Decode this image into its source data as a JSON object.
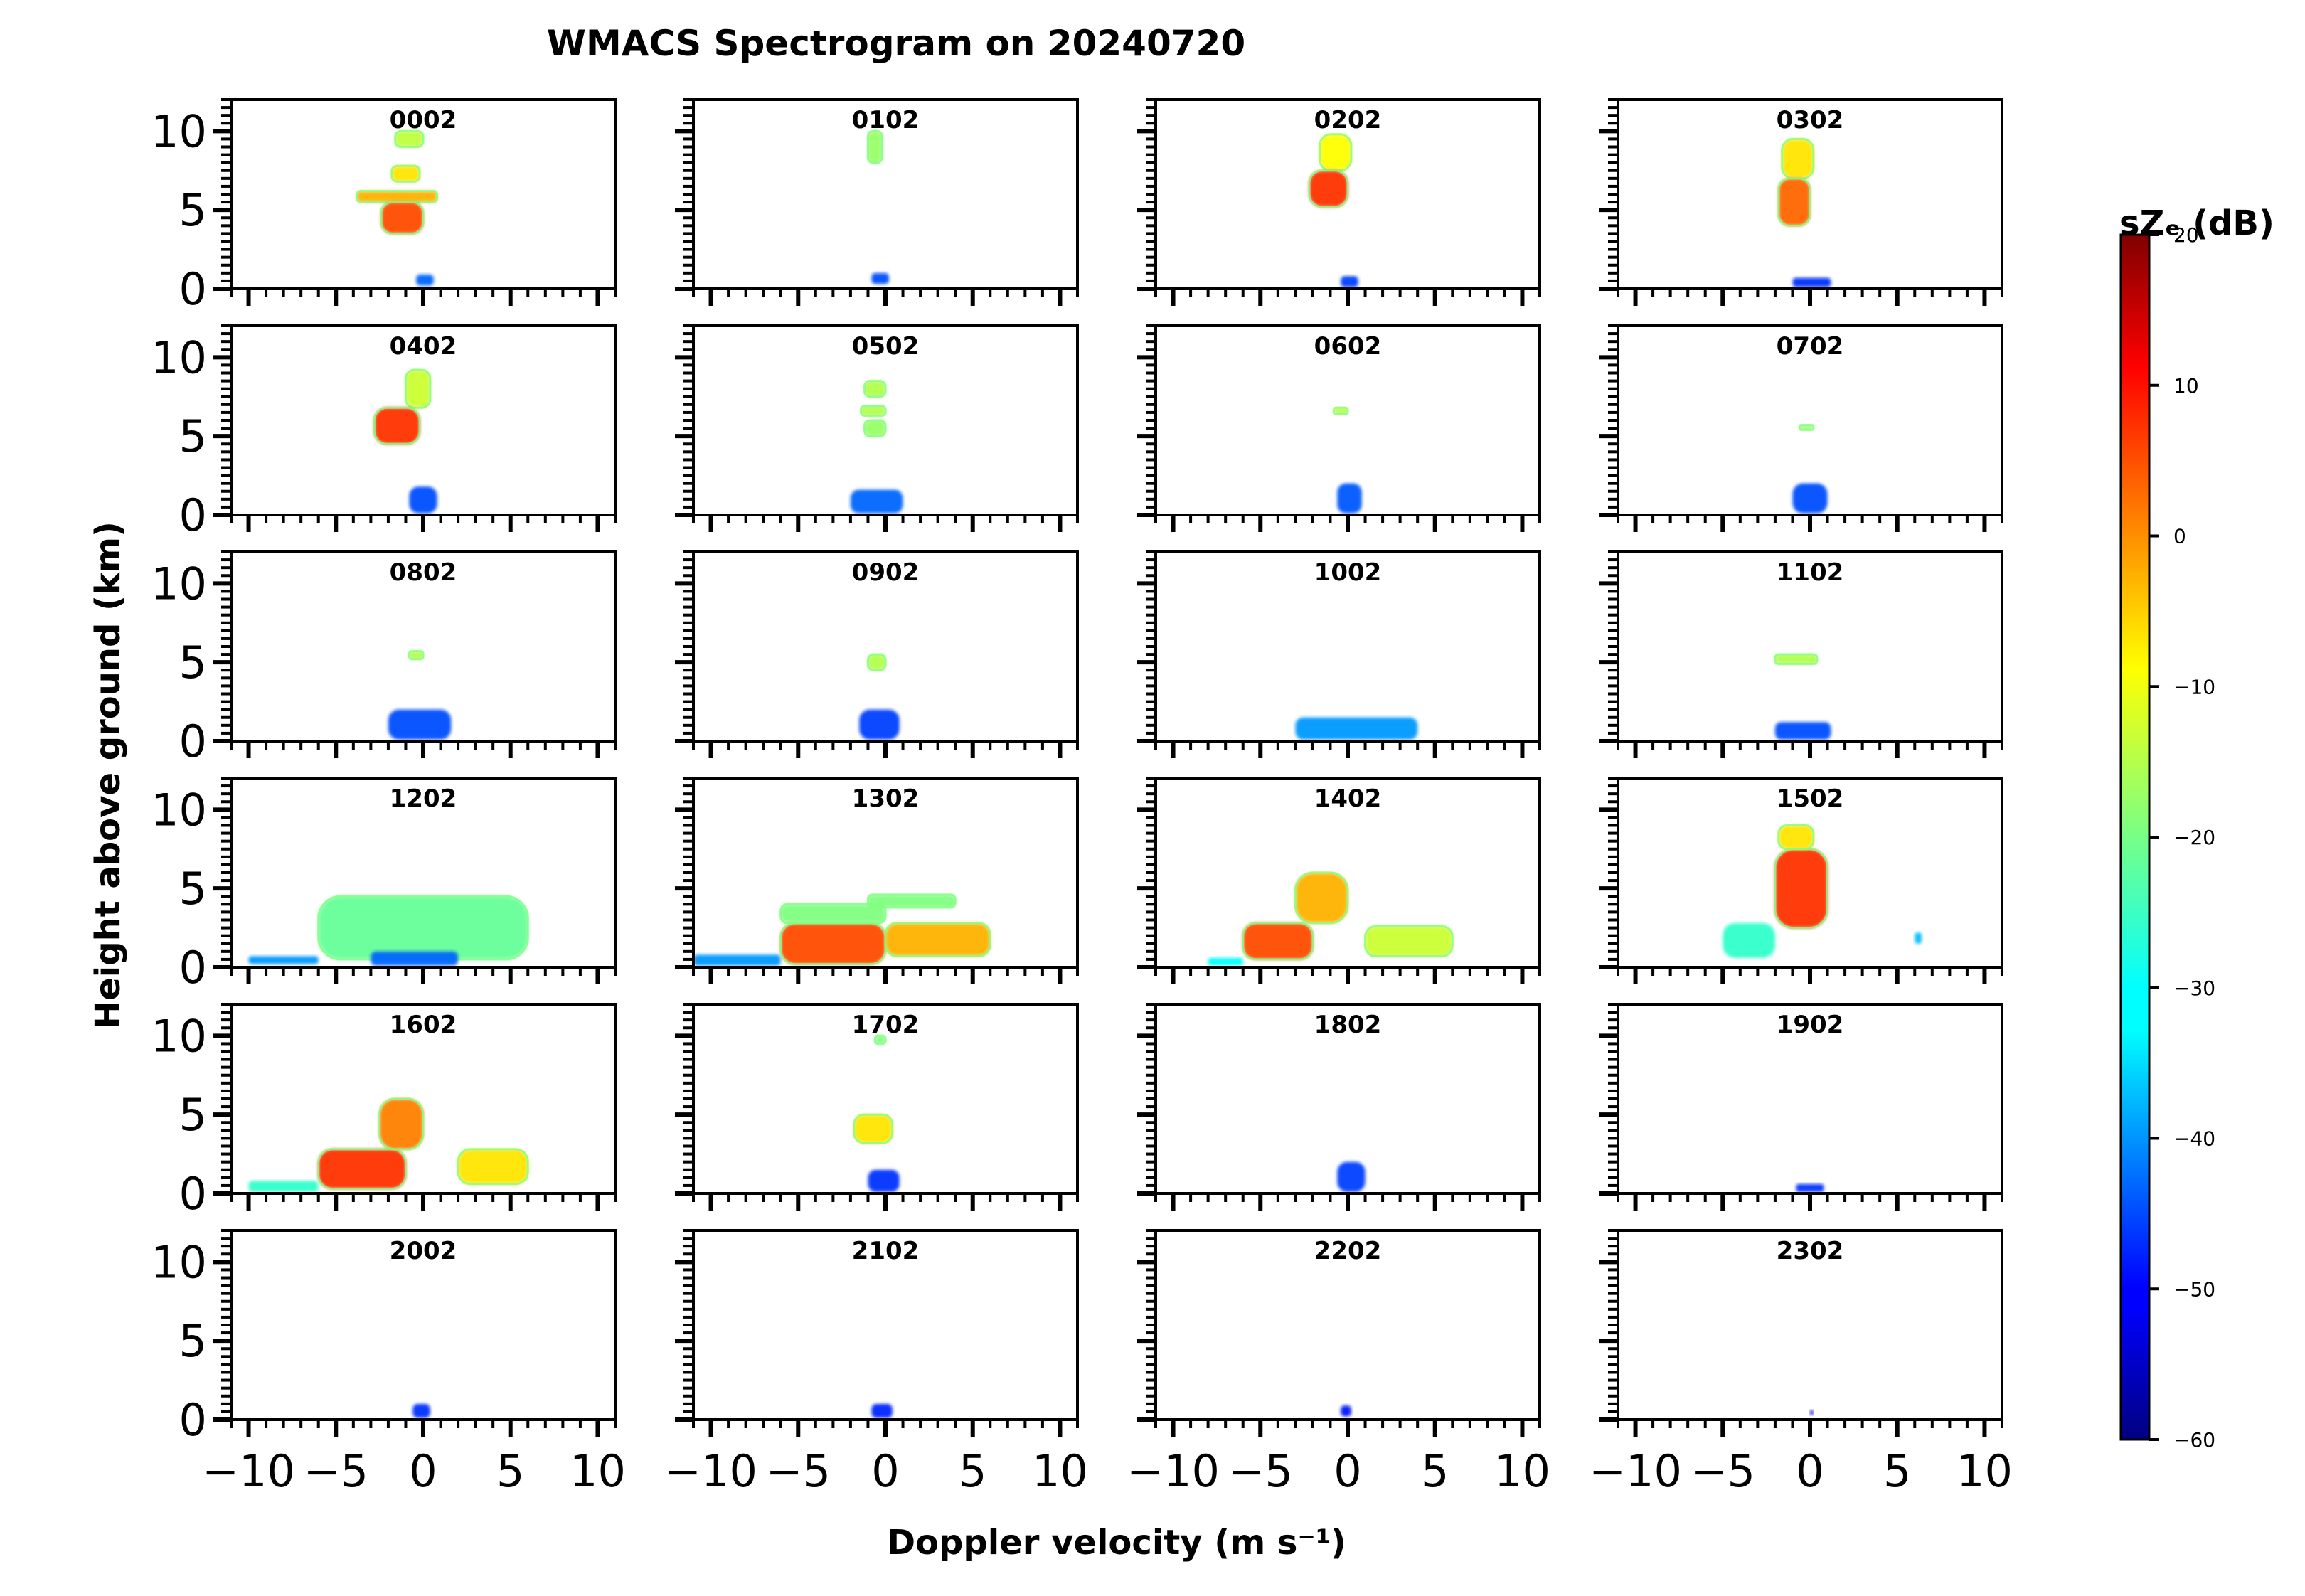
{
  "chart_data": {
    "type": "heatmap",
    "title": "WMACS Spectrogram on 20240720",
    "xlabel": "Doppler velocity (m s⁻¹)",
    "ylabel": "Height above ground (km)",
    "xlim": [
      -11,
      11
    ],
    "ylim": [
      0,
      12
    ],
    "x_ticks": [
      -10,
      -5,
      0,
      5,
      10
    ],
    "x_tick_labels": [
      "−10",
      "−5",
      "0",
      "5",
      "10"
    ],
    "y_ticks": [
      0,
      5,
      10
    ],
    "y_tick_labels": [
      "0",
      "5",
      "10"
    ],
    "colorbar": {
      "label": "sZₑ (dB)",
      "range": [
        -60,
        20
      ],
      "ticks": [
        -60,
        -50,
        -40,
        -30,
        -20,
        -10,
        0,
        10,
        20
      ],
      "tick_labels": [
        "−60",
        "−50",
        "−40",
        "−30",
        "−20",
        "−10",
        "0",
        "10",
        "20"
      ],
      "colormap": "jet"
    },
    "panels": [
      {
        "time": "0002",
        "features": [
          {
            "x": [
              -1.6,
              0.0
            ],
            "y": [
              9.0,
              10.0
            ],
            "dB": -15
          },
          {
            "x": [
              -1.8,
              -0.2
            ],
            "y": [
              6.8,
              7.8
            ],
            "dB": -8
          },
          {
            "x": [
              -3.8,
              0.8
            ],
            "y": [
              5.5,
              6.2
            ],
            "dB": -4
          },
          {
            "x": [
              -2.4,
              0.0
            ],
            "y": [
              3.5,
              5.5
            ],
            "dB": 4
          },
          {
            "x": [
              -0.4,
              0.6
            ],
            "y": [
              0.2,
              0.9
            ],
            "dB": -42
          }
        ]
      },
      {
        "time": "0102",
        "features": [
          {
            "x": [
              -1.0,
              -0.2
            ],
            "y": [
              8.0,
              10.0
            ],
            "dB": -18
          },
          {
            "x": [
              -0.8,
              0.2
            ],
            "y": [
              0.3,
              1.0
            ],
            "dB": -44
          }
        ]
      },
      {
        "time": "0202",
        "features": [
          {
            "x": [
              -1.6,
              0.2
            ],
            "y": [
              7.5,
              9.8
            ],
            "dB": -10
          },
          {
            "x": [
              -2.2,
              0.0
            ],
            "y": [
              5.2,
              7.5
            ],
            "dB": 6
          },
          {
            "x": [
              -0.4,
              0.6
            ],
            "y": [
              0.1,
              0.8
            ],
            "dB": -45
          }
        ]
      },
      {
        "time": "0302",
        "features": [
          {
            "x": [
              -1.6,
              0.2
            ],
            "y": [
              7.0,
              9.5
            ],
            "dB": -8
          },
          {
            "x": [
              -1.8,
              0.0
            ],
            "y": [
              4.0,
              7.0
            ],
            "dB": 2
          },
          {
            "x": [
              -1.0,
              1.2
            ],
            "y": [
              0.1,
              0.7
            ],
            "dB": -46
          }
        ]
      },
      {
        "time": "0402",
        "features": [
          {
            "x": [
              -1.0,
              0.4
            ],
            "y": [
              6.8,
              9.2
            ],
            "dB": -14
          },
          {
            "x": [
              -2.8,
              -0.2
            ],
            "y": [
              4.5,
              6.8
            ],
            "dB": 6
          },
          {
            "x": [
              -0.8,
              0.8
            ],
            "y": [
              0.1,
              1.8
            ],
            "dB": -44
          }
        ]
      },
      {
        "time": "0502",
        "features": [
          {
            "x": [
              -1.2,
              0.0
            ],
            "y": [
              7.5,
              8.5
            ],
            "dB": -16
          },
          {
            "x": [
              -1.4,
              0.0
            ],
            "y": [
              6.3,
              6.9
            ],
            "dB": -16
          },
          {
            "x": [
              -1.2,
              0.0
            ],
            "y": [
              5.0,
              6.0
            ],
            "dB": -18
          },
          {
            "x": [
              -2.0,
              1.0
            ],
            "y": [
              0.1,
              1.6
            ],
            "dB": -42
          }
        ]
      },
      {
        "time": "0602",
        "features": [
          {
            "x": [
              -0.8,
              0.0
            ],
            "y": [
              6.4,
              6.8
            ],
            "dB": -15
          },
          {
            "x": [
              -0.6,
              0.8
            ],
            "y": [
              0.1,
              2.0
            ],
            "dB": -43
          }
        ]
      },
      {
        "time": "0702",
        "features": [
          {
            "x": [
              -0.6,
              0.2
            ],
            "y": [
              5.4,
              5.7
            ],
            "dB": -18
          },
          {
            "x": [
              -1.0,
              1.0
            ],
            "y": [
              0.1,
              2.0
            ],
            "dB": -44
          }
        ]
      },
      {
        "time": "0802",
        "features": [
          {
            "x": [
              -0.8,
              0.0
            ],
            "y": [
              5.2,
              5.7
            ],
            "dB": -16
          },
          {
            "x": [
              -2.0,
              1.6
            ],
            "y": [
              0.1,
              2.0
            ],
            "dB": -44
          }
        ]
      },
      {
        "time": "0902",
        "features": [
          {
            "x": [
              -1.0,
              0.0
            ],
            "y": [
              4.5,
              5.5
            ],
            "dB": -16
          },
          {
            "x": [
              -1.5,
              0.8
            ],
            "y": [
              0.1,
              2.0
            ],
            "dB": -45
          }
        ]
      },
      {
        "time": "1002",
        "features": [
          {
            "x": [
              -3.0,
              4.0
            ],
            "y": [
              0.1,
              1.5
            ],
            "dB": -38
          }
        ]
      },
      {
        "time": "1102",
        "features": [
          {
            "x": [
              -2.0,
              0.4
            ],
            "y": [
              4.9,
              5.5
            ],
            "dB": -16
          },
          {
            "x": [
              -2.0,
              1.2
            ],
            "y": [
              0.1,
              1.2
            ],
            "dB": -44
          }
        ]
      },
      {
        "time": "1202",
        "features": [
          {
            "x": [
              -10.0,
              -6.0
            ],
            "y": [
              0.2,
              0.7
            ],
            "dB": -38
          },
          {
            "x": [
              -6.0,
              6.0
            ],
            "y": [
              0.5,
              4.5
            ],
            "dB": -22
          },
          {
            "x": [
              -3.0,
              2.0
            ],
            "y": [
              0.1,
              1.0
            ],
            "dB": -42
          }
        ]
      },
      {
        "time": "1302",
        "features": [
          {
            "x": [
              -11.0,
              -6.0
            ],
            "y": [
              0.1,
              0.8
            ],
            "dB": -38
          },
          {
            "x": [
              -6.0,
              0.0
            ],
            "y": [
              0.2,
              2.8
            ],
            "dB": 4
          },
          {
            "x": [
              -6.0,
              0.0
            ],
            "y": [
              2.8,
              4.0
            ],
            "dB": -20
          },
          {
            "x": [
              0.0,
              6.0
            ],
            "y": [
              0.7,
              2.8
            ],
            "dB": -4
          },
          {
            "x": [
              -1.0,
              4.0
            ],
            "y": [
              3.8,
              4.6
            ],
            "dB": -20
          }
        ]
      },
      {
        "time": "1402",
        "features": [
          {
            "x": [
              -8.0,
              -6.0
            ],
            "y": [
              0.1,
              0.6
            ],
            "dB": -30
          },
          {
            "x": [
              -6.0,
              -2.0
            ],
            "y": [
              0.5,
              2.8
            ],
            "dB": 4
          },
          {
            "x": [
              -3.0,
              0.0
            ],
            "y": [
              2.8,
              6.0
            ],
            "dB": -4
          },
          {
            "x": [
              1.0,
              6.0
            ],
            "y": [
              0.7,
              2.6
            ],
            "dB": -14
          }
        ]
      },
      {
        "time": "1502",
        "features": [
          {
            "x": [
              -5.0,
              -2.0
            ],
            "y": [
              0.6,
              2.8
            ],
            "dB": -26
          },
          {
            "x": [
              -2.0,
              1.0
            ],
            "y": [
              2.5,
              7.5
            ],
            "dB": 6
          },
          {
            "x": [
              -1.8,
              0.2
            ],
            "y": [
              7.5,
              9.0
            ],
            "dB": -8
          },
          {
            "x": [
              6.0,
              6.4
            ],
            "y": [
              1.5,
              2.2
            ],
            "dB": -35
          }
        ]
      },
      {
        "time": "1602",
        "features": [
          {
            "x": [
              -10.0,
              -6.0
            ],
            "y": [
              0.1,
              0.8
            ],
            "dB": -26
          },
          {
            "x": [
              -6.0,
              -1.0
            ],
            "y": [
              0.3,
              2.8
            ],
            "dB": 6
          },
          {
            "x": [
              -2.5,
              0.0
            ],
            "y": [
              2.8,
              6.0
            ],
            "dB": 0
          },
          {
            "x": [
              2.0,
              6.0
            ],
            "y": [
              0.6,
              2.8
            ],
            "dB": -8
          }
        ]
      },
      {
        "time": "1702",
        "features": [
          {
            "x": [
              -0.6,
              0.0
            ],
            "y": [
              9.5,
              10.0
            ],
            "dB": -20
          },
          {
            "x": [
              -1.8,
              0.4
            ],
            "y": [
              3.2,
              5.0
            ],
            "dB": -8
          },
          {
            "x": [
              -1.0,
              0.8
            ],
            "y": [
              0.1,
              1.5
            ],
            "dB": -46
          }
        ]
      },
      {
        "time": "1802",
        "features": [
          {
            "x": [
              -0.6,
              1.0
            ],
            "y": [
              0.1,
              2.0
            ],
            "dB": -45
          }
        ]
      },
      {
        "time": "1902",
        "features": [
          {
            "x": [
              -0.8,
              0.8
            ],
            "y": [
              0.1,
              0.6
            ],
            "dB": -46
          }
        ]
      },
      {
        "time": "2002",
        "features": [
          {
            "x": [
              -0.6,
              0.4
            ],
            "y": [
              0.1,
              1.0
            ],
            "dB": -46
          }
        ]
      },
      {
        "time": "2102",
        "features": [
          {
            "x": [
              -0.8,
              0.4
            ],
            "y": [
              0.1,
              1.0
            ],
            "dB": -47
          }
        ]
      },
      {
        "time": "2202",
        "features": [
          {
            "x": [
              -0.4,
              0.2
            ],
            "y": [
              0.2,
              0.9
            ],
            "dB": -48
          }
        ]
      },
      {
        "time": "2302",
        "features": [
          {
            "x": [
              0.0,
              0.2
            ],
            "y": [
              0.3,
              0.6
            ],
            "dB": -50
          }
        ]
      }
    ]
  }
}
